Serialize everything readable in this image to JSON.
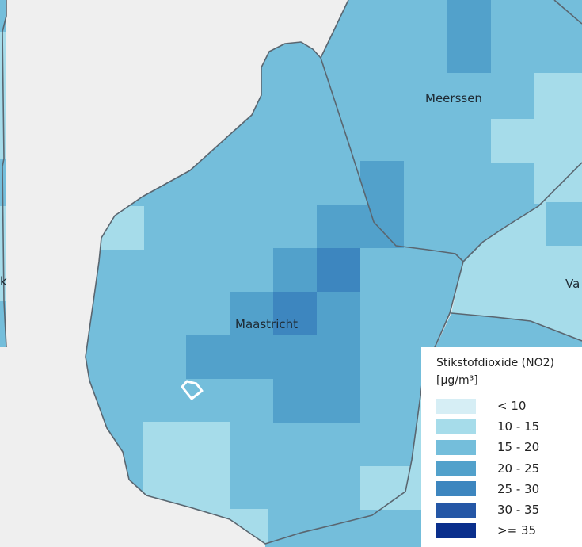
{
  "map": {
    "colors": {
      "background": "#efefef",
      "class_lt10": "#d6eef5",
      "class_10_15": "#a6dcea",
      "class_15_20": "#74bedb",
      "class_20_25": "#52a1cb",
      "class_25_30": "#3d86bf",
      "class_30_35": "#2557a6",
      "class_ge35": "#0a2f8c",
      "boundary": "#5a6670"
    },
    "places": {
      "maastricht": "Maastricht",
      "meerssen": "Meerssen",
      "partial_east": "Va",
      "partial_west": "k"
    },
    "marker_icon": "location-marker-outline-icon"
  },
  "legend": {
    "title": "Stikstofdioxide (NO2)\n[µg/m³]",
    "items": [
      {
        "label": "< 10",
        "color": "#d6eef5"
      },
      {
        "label": "10 - 15",
        "color": "#a6dcea"
      },
      {
        "label": "15 - 20",
        "color": "#74bedb"
      },
      {
        "label": "20 - 25",
        "color": "#52a1cb"
      },
      {
        "label": "25 - 30",
        "color": "#3d86bf"
      },
      {
        "label": "30 - 35",
        "color": "#2557a6"
      },
      {
        "label": ">= 35",
        "color": "#0a2f8c"
      }
    ]
  }
}
